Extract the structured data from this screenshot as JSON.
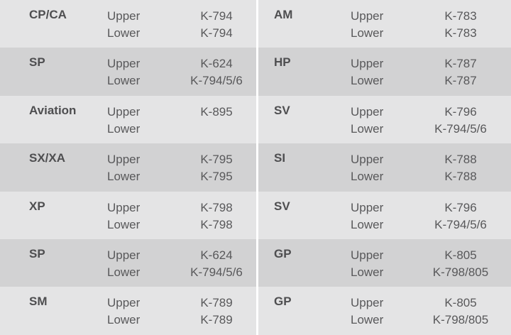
{
  "colors": {
    "row_light": "#e4e4e5",
    "row_dark": "#d2d2d3",
    "text": "#58585a",
    "divider": "#ffffff"
  },
  "left": [
    {
      "name": "CP/CA",
      "upper_label": "Upper",
      "lower_label": "Lower",
      "upper": "K-794",
      "lower": "K-794"
    },
    {
      "name": "SP",
      "upper_label": "Upper",
      "lower_label": "Lower",
      "upper": "K-624",
      "lower": "K-794/5/6"
    },
    {
      "name": "Aviation",
      "upper_label": "Upper",
      "lower_label": "Lower",
      "upper": "K-895",
      "lower": ""
    },
    {
      "name": "SX/XA",
      "upper_label": "Upper",
      "lower_label": "Lower",
      "upper": "K-795",
      "lower": "K-795"
    },
    {
      "name": "XP",
      "upper_label": "Upper",
      "lower_label": "Lower",
      "upper": "K-798",
      "lower": "K-798"
    },
    {
      "name": "SP",
      "upper_label": "Upper",
      "lower_label": "Lower",
      "upper": "K-624",
      "lower": "K-794/5/6"
    },
    {
      "name": "SM",
      "upper_label": "Upper",
      "lower_label": "Lower",
      "upper": "K-789",
      "lower": "K-789"
    }
  ],
  "right": [
    {
      "name": "AM",
      "upper_label": "Upper",
      "lower_label": "Lower",
      "upper": "K-783",
      "lower": "K-783"
    },
    {
      "name": "HP",
      "upper_label": "Upper",
      "lower_label": "Lower",
      "upper": "K-787",
      "lower": "K-787"
    },
    {
      "name": "SV",
      "upper_label": "Upper",
      "lower_label": "Lower",
      "upper": "K-796",
      "lower": "K-794/5/6"
    },
    {
      "name": "SI",
      "upper_label": "Upper",
      "lower_label": "Lower",
      "upper": "K-788",
      "lower": "K-788"
    },
    {
      "name": "SV",
      "upper_label": "Upper",
      "lower_label": "Lower",
      "upper": "K-796",
      "lower": "K-794/5/6"
    },
    {
      "name": "GP",
      "upper_label": "Upper",
      "lower_label": "Lower",
      "upper": "K-805",
      "lower": "K-798/805"
    },
    {
      "name": "GP",
      "upper_label": "Upper",
      "lower_label": "Lower",
      "upper": "K-805",
      "lower": "K-798/805"
    }
  ]
}
